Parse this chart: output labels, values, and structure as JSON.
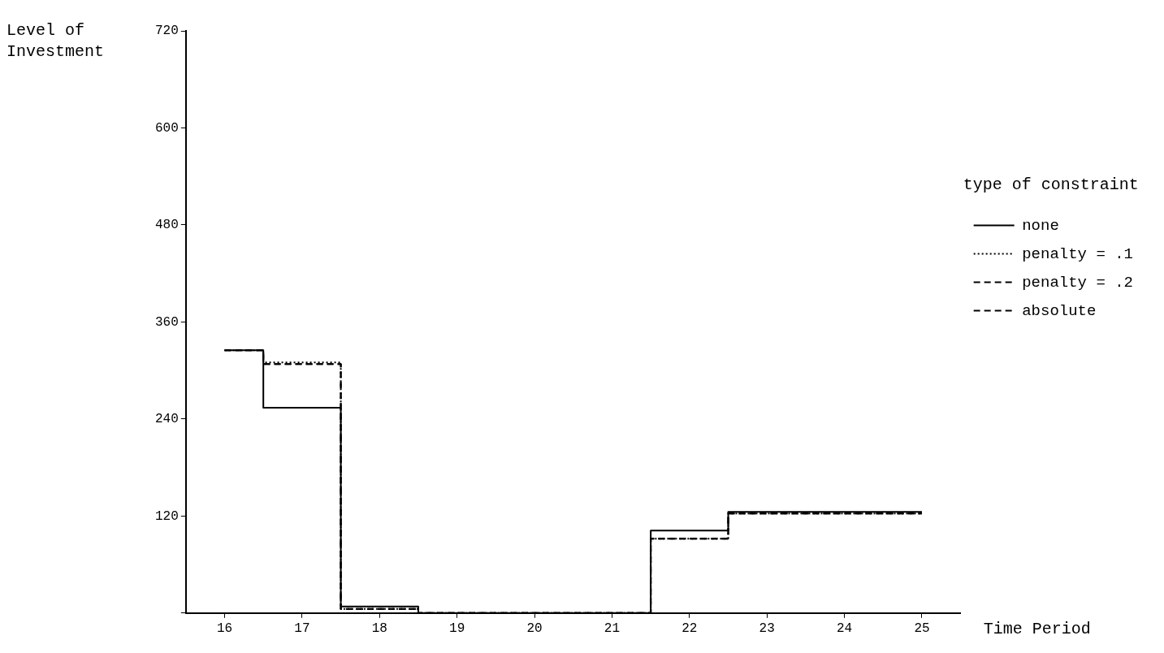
{
  "chart_data": {
    "type": "step",
    "xlabel": "Time Period",
    "ylabel": "Level of Investment",
    "legend_title": "type of constraint",
    "legend": "right",
    "grid": false,
    "categories": [
      "16",
      "17",
      "18",
      "19",
      "20",
      "21",
      "22",
      "23",
      "24",
      "25"
    ],
    "ylim": [
      0,
      720
    ],
    "yticks": [
      {
        "value": 0,
        "label": null
      },
      120,
      240,
      360,
      480,
      600,
      720
    ],
    "series": [
      {
        "name": "none",
        "color": "#000000",
        "line_style": "solid",
        "values": [
          325,
          254,
          8,
          0,
          0,
          0,
          102,
          125,
          125,
          125
        ]
      },
      {
        "name": "penalty = .1",
        "color": "#000000",
        "line_style": "dotted",
        "values": [
          325,
          310,
          5,
          0,
          0,
          0,
          92,
          123,
          123,
          123
        ]
      },
      {
        "name": "penalty = .2",
        "color": "#000000",
        "line_style": "dashed",
        "values": [
          325,
          308,
          5,
          0,
          0,
          0,
          92,
          123,
          123,
          123
        ]
      },
      {
        "name": "absolute",
        "color": "#000000",
        "line_style": "dashed",
        "values": [
          325,
          308,
          5,
          0,
          0,
          0,
          92,
          123,
          123,
          123
        ]
      }
    ]
  }
}
